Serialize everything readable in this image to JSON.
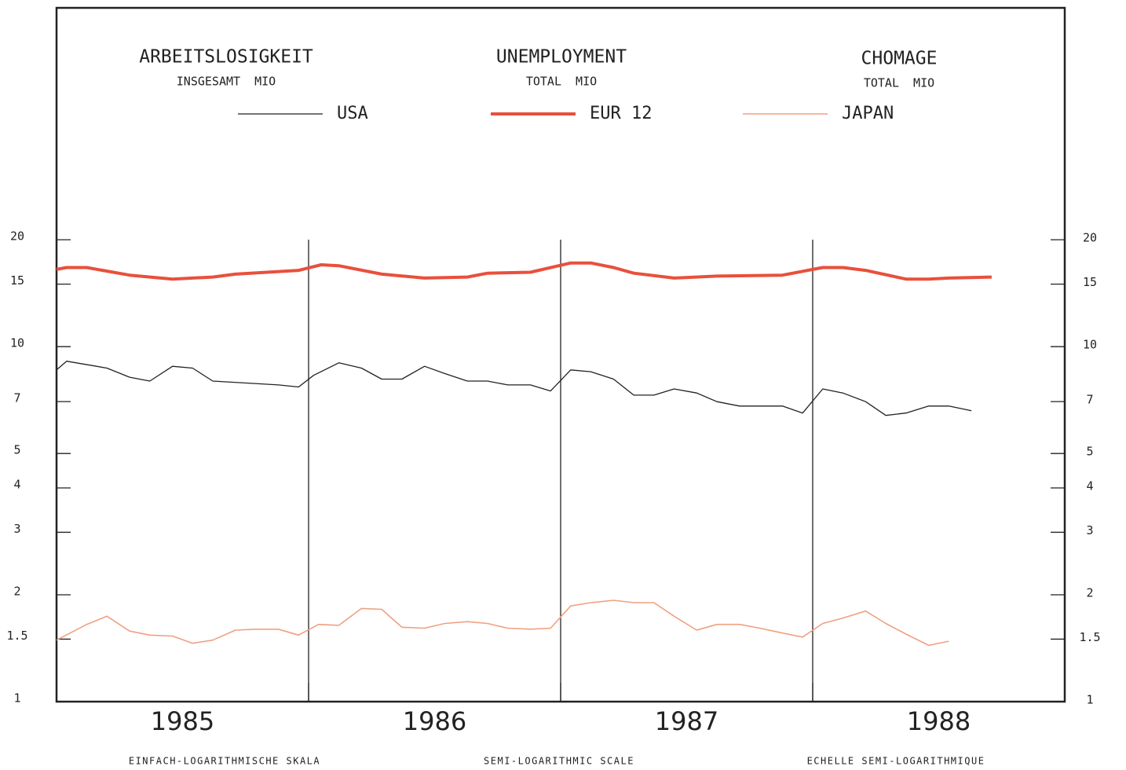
{
  "chart_data": {
    "type": "line",
    "title_blocks": [
      {
        "title": "ARBEITSLOSIGKEIT",
        "subtitle": "INSGESAMT  MIO"
      },
      {
        "title": "UNEMPLOYMENT",
        "subtitle": "TOTAL  MIO"
      },
      {
        "title": "CHOMAGE",
        "subtitle": "TOTAL  MIO"
      }
    ],
    "footer_notes": [
      "EINFACH-LOGARITHMISCHE SKALA",
      "SEMI-LOGARITHMIC SCALE",
      "ECHELLE SEMI-LOGARITHMIQUE"
    ],
    "log_scale": true,
    "xlim": [
      1985,
      1989
    ],
    "xticks": [
      {
        "value": 1985.5,
        "label": "1985"
      },
      {
        "value": 1986.5,
        "label": "1986"
      },
      {
        "value": 1987.5,
        "label": "1987"
      },
      {
        "value": 1988.5,
        "label": "1988"
      }
    ],
    "xgrid": [
      1986,
      1987,
      1988
    ],
    "ylim": [
      1,
      90
    ],
    "yticks": [
      1,
      1.5,
      2,
      3,
      4,
      5,
      7,
      10,
      15,
      20
    ],
    "series": [
      {
        "name": "USA",
        "color": "#222222",
        "width": 1.3,
        "x": [
          1985.0,
          1985.04,
          1985.2,
          1985.29,
          1985.37,
          1985.46,
          1985.54,
          1985.62,
          1985.88,
          1985.96,
          1986.02,
          1986.12,
          1986.21,
          1986.29,
          1986.37,
          1986.46,
          1986.54,
          1986.63,
          1986.71,
          1986.79,
          1986.88,
          1986.96,
          1987.04,
          1987.12,
          1987.21,
          1987.29,
          1987.37,
          1987.45,
          1987.54,
          1987.62,
          1987.71,
          1987.88,
          1987.96,
          1988.04,
          1988.12,
          1988.21,
          1988.29,
          1988.37,
          1988.46,
          1988.54,
          1988.63
        ],
        "values": [
          8.6,
          9.1,
          8.7,
          8.2,
          8.0,
          8.8,
          8.7,
          8.0,
          7.8,
          7.7,
          8.3,
          9.0,
          8.7,
          8.1,
          8.1,
          8.8,
          8.4,
          8.0,
          8.0,
          7.8,
          7.8,
          7.5,
          8.6,
          8.5,
          8.1,
          7.3,
          7.3,
          7.6,
          7.4,
          7.0,
          6.8,
          6.8,
          6.5,
          7.6,
          7.4,
          7.0,
          6.4,
          6.5,
          6.8,
          6.8,
          6.6
        ]
      },
      {
        "name": "EUR 12",
        "color": "#e8503c",
        "width": 4,
        "x": [
          1985.0,
          1985.04,
          1985.12,
          1985.29,
          1985.46,
          1985.62,
          1985.71,
          1985.96,
          1986.05,
          1986.12,
          1986.29,
          1986.46,
          1986.63,
          1986.71,
          1986.88,
          1987.04,
          1987.12,
          1987.21,
          1987.29,
          1987.45,
          1987.62,
          1987.88,
          1988.0,
          1988.04,
          1988.12,
          1988.21,
          1988.37,
          1988.46,
          1988.54,
          1988.71
        ],
        "values": [
          16.5,
          16.7,
          16.7,
          15.9,
          15.5,
          15.7,
          16.0,
          16.4,
          17.0,
          16.9,
          16.0,
          15.6,
          15.7,
          16.1,
          16.2,
          17.2,
          17.2,
          16.7,
          16.1,
          15.6,
          15.8,
          15.9,
          16.5,
          16.7,
          16.7,
          16.4,
          15.5,
          15.5,
          15.6,
          15.7
        ]
      },
      {
        "name": "JAPAN",
        "color": "#f0a080",
        "width": 1.6,
        "x": [
          1985.0,
          1985.12,
          1985.2,
          1985.29,
          1985.37,
          1985.46,
          1985.54,
          1985.62,
          1985.71,
          1985.79,
          1985.88,
          1985.96,
          1986.04,
          1986.12,
          1986.21,
          1986.29,
          1986.37,
          1986.46,
          1986.54,
          1986.63,
          1986.71,
          1986.79,
          1986.88,
          1986.96,
          1987.04,
          1987.12,
          1987.21,
          1987.29,
          1987.37,
          1987.45,
          1987.54,
          1987.62,
          1987.71,
          1987.79,
          1987.88,
          1987.96,
          1988.04,
          1988.12,
          1988.21,
          1988.29,
          1988.37,
          1988.46,
          1988.54
        ],
        "values": [
          1.49,
          1.65,
          1.74,
          1.58,
          1.54,
          1.53,
          1.46,
          1.49,
          1.59,
          1.6,
          1.6,
          1.54,
          1.65,
          1.64,
          1.83,
          1.82,
          1.62,
          1.61,
          1.66,
          1.68,
          1.66,
          1.61,
          1.6,
          1.61,
          1.86,
          1.9,
          1.93,
          1.9,
          1.9,
          1.74,
          1.59,
          1.65,
          1.65,
          1.61,
          1.56,
          1.52,
          1.66,
          1.72,
          1.8,
          1.66,
          1.55,
          1.44,
          1.48
        ]
      }
    ]
  }
}
